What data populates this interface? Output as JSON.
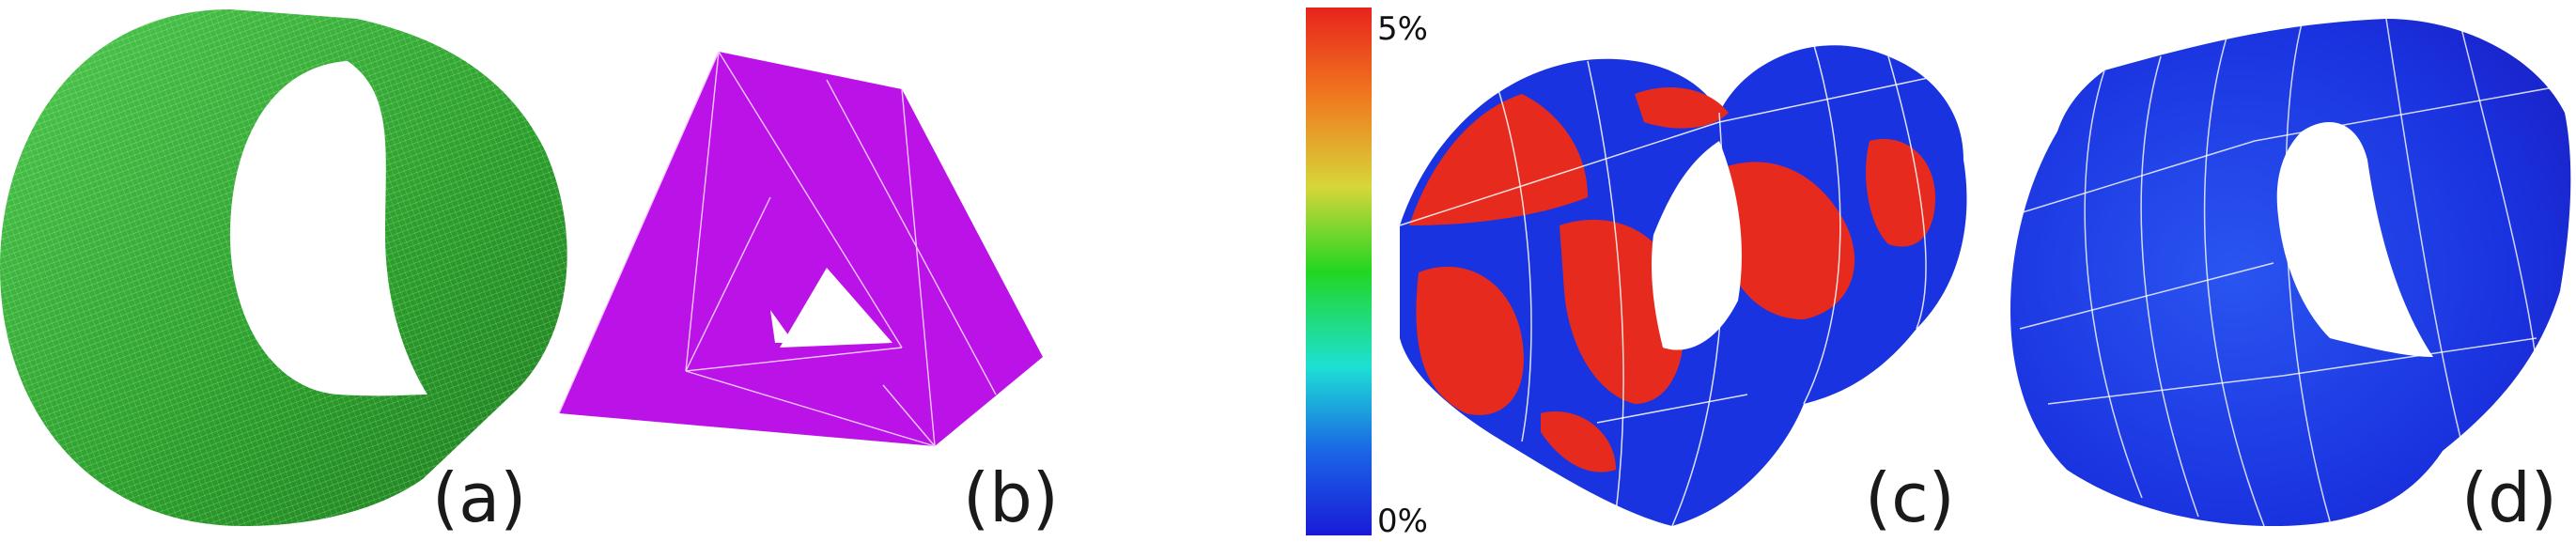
{
  "panels": [
    {
      "label": "(a)"
    },
    {
      "label": "(b)"
    },
    {
      "label": "(c)"
    },
    {
      "label": "(d)"
    }
  ],
  "colorbar": {
    "max_label": "5%",
    "min_label": "0%",
    "colors": [
      "#e8231d",
      "#f07a1e",
      "#d6d63a",
      "#22d622",
      "#1ee0d4",
      "#1a66e6",
      "#1a1ad8"
    ]
  },
  "colors": {
    "cylinder_green": "#2fa82f",
    "prism_magenta": "#bb12e8",
    "strain_high": "#e62b1e",
    "strain_low": "#1a33e0"
  }
}
